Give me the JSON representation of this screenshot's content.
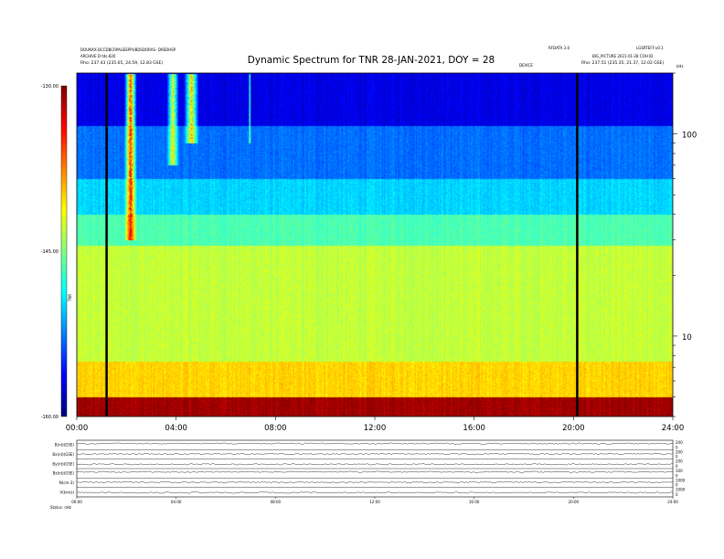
{
  "header": {
    "left_line1": "DOUNXX-DCCDBCRPAGEEPPUBDSDORAS- DREDHSP",
    "left_line2": "ARCHIVE D tds-820",
    "left_line3": "Rho: 237.43 (235.65, 24.59, 12.83 GSE)",
    "center_small": "DEVICE",
    "right_top1": "RFDATA 3.0",
    "right_top2": "LGSRTEFF:v0.1",
    "right_line2": "BIG_PICTURE 2021-01-28 COH ID",
    "right_line3": "Rho: 237.51 (235.35, 21.37, 12.02 GSE)",
    "right_unit": "kHz"
  },
  "chart_data": {
    "type": "heatmap",
    "title": "Dynamic Spectrum for TNR 28-JAN-2021, DOY = 28",
    "x_ticks": [
      "00:00",
      "04:00",
      "08:00",
      "12:00",
      "16:00",
      "20:00",
      "24:00"
    ],
    "x_range_hours": [
      0,
      24
    ],
    "y_scale": "log",
    "y_range_khz": [
      4,
      200
    ],
    "y_tick_labels": [
      "100",
      "10"
    ],
    "y_tick_values": [
      100,
      10
    ],
    "colorbar": {
      "label": "TNR",
      "tick_labels": [
        "-130.00",
        "-145.00",
        "-160.00"
      ],
      "tick_values": [
        -130,
        -145,
        -160
      ],
      "range": [
        -160,
        -130
      ],
      "colors": [
        "#00007f",
        "#0000ff",
        "#007fff",
        "#00ffff",
        "#7fff7f",
        "#ffff00",
        "#ff7f00",
        "#ff0000",
        "#7f0000"
      ]
    },
    "vertical_markers_hours": [
      1.2,
      20.15
    ],
    "noise_bands_khz": [
      {
        "low": 4,
        "high": 5,
        "level": -131
      },
      {
        "low": 5,
        "high": 7.5,
        "level": -140
      },
      {
        "low": 7.5,
        "high": 28,
        "level": -143
      },
      {
        "low": 28,
        "high": 40,
        "level": -146.5
      },
      {
        "low": 40,
        "high": 60,
        "level": -150
      },
      {
        "low": 60,
        "high": 110,
        "level": -153
      },
      {
        "low": 110,
        "high": 200,
        "level": -157
      }
    ],
    "bursts": [
      {
        "start_hours": 1.9,
        "end_hours": 2.4,
        "low_khz": 30,
        "high_khz": 200,
        "peak_level": -130
      },
      {
        "start_hours": 3.6,
        "end_hours": 4.1,
        "low_khz": 70,
        "high_khz": 200,
        "peak_level": -138
      },
      {
        "start_hours": 4.3,
        "end_hours": 4.9,
        "low_khz": 90,
        "high_khz": 200,
        "peak_level": -136
      },
      {
        "start_hours": 6.9,
        "end_hours": 7.0,
        "low_khz": 90,
        "high_khz": 200,
        "peak_level": -142
      }
    ],
    "panels": [
      {
        "label": "B(nt)(GSE)",
        "right_ticks": [
          "200",
          "0"
        ]
      },
      {
        "label": "Bx(nt)(GSE)",
        "right_ticks": [
          "200",
          "0"
        ]
      },
      {
        "label": "By(nt)(GSE)",
        "right_ticks": [
          "200",
          "0"
        ]
      },
      {
        "label": "Bz(nt)(GSE)",
        "right_ticks": [
          "100",
          "0"
        ]
      },
      {
        "label": "N(cm-3)",
        "right_ticks": [
          "1000",
          "0"
        ]
      },
      {
        "label": "V(km/s)",
        "right_ticks": [
          "1000",
          "0"
        ]
      }
    ],
    "panel_x_ticks": [
      "00:00",
      "04:00",
      "08:00",
      "12:00",
      "16:00",
      "20:00",
      "24:00"
    ],
    "footer_label": "Status: nHz"
  }
}
